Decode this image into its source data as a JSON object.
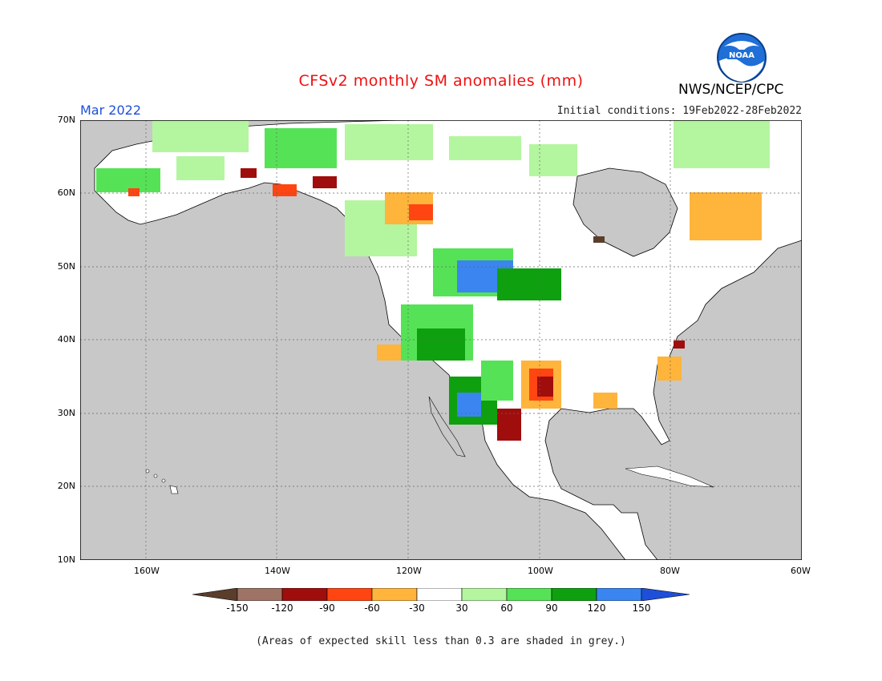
{
  "header": {
    "title": "CFSv2 monthly SM anomalies (mm)",
    "agency": "NWS/NCEP/CPC",
    "month": "Mar 2022",
    "initial_conditions": "Initial conditions: 19Feb2022-28Feb2022",
    "logo_text": "NOAA"
  },
  "axes": {
    "lat_labels": [
      "70N",
      "60N",
      "50N",
      "40N",
      "30N",
      "20N",
      "10N"
    ],
    "lon_labels": [
      "160W",
      "140W",
      "120W",
      "100W",
      "80W",
      "60W"
    ],
    "lon_range": [
      -170,
      -60
    ],
    "lat_range": [
      10,
      70
    ]
  },
  "colorbar": {
    "labels": [
      "-150",
      "-120",
      "-90",
      "-60",
      "-30",
      "30",
      "60",
      "90",
      "120",
      "150"
    ],
    "colors": [
      "#5a3d2b",
      "#9e7467",
      "#a00d0d",
      "#ff4511",
      "#ffb43c",
      "#ffffff",
      "#b4f5a0",
      "#56e256",
      "#0fa00f",
      "#3a85f0",
      "#1e4fd8"
    ]
  },
  "colors": {
    "ocean": "#c8c8c8",
    "title": "#ee1111",
    "month": "#1e4fd8"
  },
  "footnote": "(Areas of expected skill less than 0.3 are shaded in grey.)"
}
